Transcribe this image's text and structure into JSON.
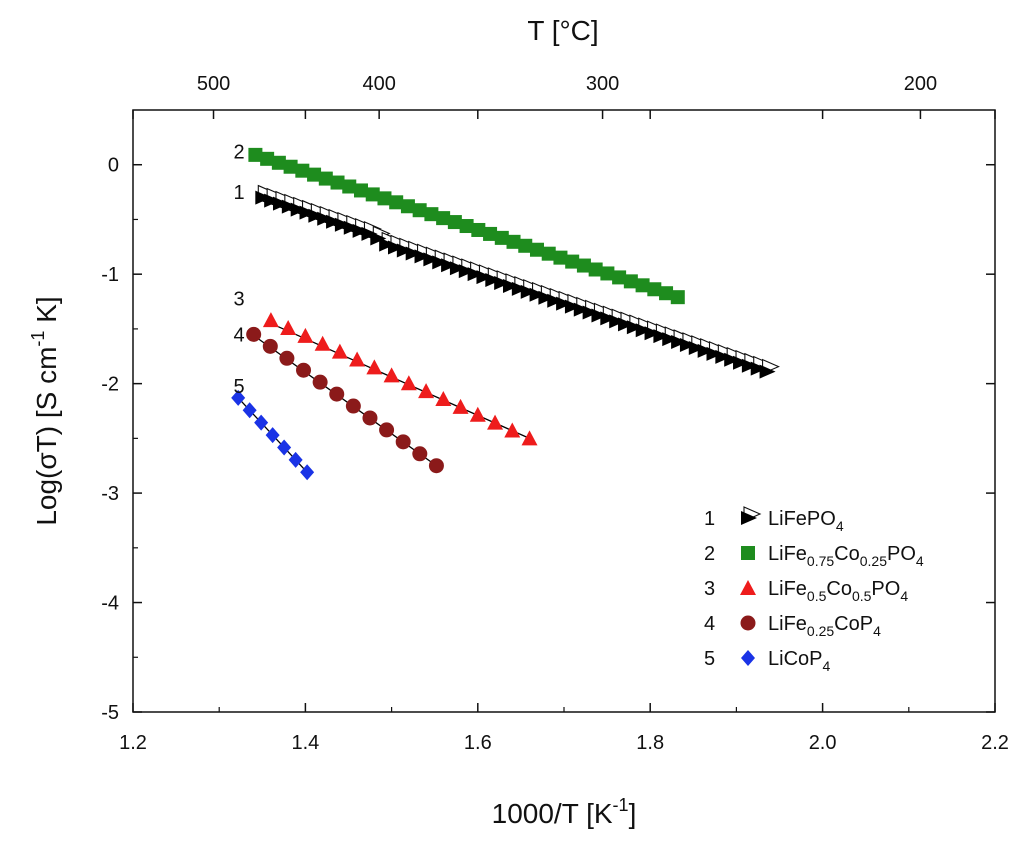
{
  "chart_data": {
    "type": "scatter",
    "xlabel": "1000/T [K",
    "xlabel_sup": "-1",
    "xlabel_end": "]",
    "ylabel": "Log(σT) [S cm",
    "ylabel_sup": "-1",
    "ylabel_end": " K]",
    "top_xlabel": "T [°C]",
    "xlim": [
      1.2,
      2.2
    ],
    "ylim": [
      -5,
      0.5
    ],
    "x_ticks": [
      1.2,
      1.4,
      1.6,
      1.8,
      2.0,
      2.2
    ],
    "x_tick_labels": [
      "1.2",
      "1.4",
      "1.6",
      "1.8",
      "2.0",
      "2.2"
    ],
    "y_ticks": [
      0,
      -1,
      -2,
      -3,
      -4,
      -5
    ],
    "y_tick_labels": [
      "0",
      "-1",
      "-2",
      "-3",
      "-4",
      "-5"
    ],
    "top_ticks_celsius": [
      500,
      400,
      300,
      200
    ],
    "top_tick_labels": [
      "500",
      "400",
      "300",
      "200"
    ],
    "legend_position": "bottom-right",
    "series": [
      {
        "id": "1",
        "name": "LiFePO4",
        "legend_parts": [
          {
            "t": "LiFePO"
          },
          {
            "t": "4",
            "sub": true
          }
        ],
        "marker": "triangle-right",
        "color": "#000000",
        "x_range": [
          1.35,
          1.935
        ],
        "n_points": 58,
        "fit": [
          [
            1.35,
            -0.33
          ],
          [
            1.935,
            -1.89
          ]
        ],
        "points": [
          [
            1.35,
            -0.3
          ],
          [
            1.48,
            -0.65
          ],
          [
            1.49,
            -0.72
          ],
          [
            1.935,
            -1.89
          ]
        ]
      },
      {
        "id": "2",
        "name": "LiFe0.75Co0.25PO4",
        "legend_parts": [
          {
            "t": "LiFe"
          },
          {
            "t": "0.75",
            "sub": true
          },
          {
            "t": "Co"
          },
          {
            "t": "0.25",
            "sub": true
          },
          {
            "t": "PO"
          },
          {
            "t": "4",
            "sub": true
          }
        ],
        "marker": "square",
        "color": "#1e8c1e",
        "x_range": [
          1.342,
          1.832
        ],
        "n_points": 37,
        "fit": [
          [
            1.342,
            0.1
          ],
          [
            1.832,
            -1.21
          ]
        ],
        "points": [
          [
            1.342,
            0.09
          ],
          [
            1.832,
            -1.21
          ]
        ]
      },
      {
        "id": "3",
        "name": "LiFe0.5Co0.5PO4",
        "legend_parts": [
          {
            "t": "LiFe"
          },
          {
            "t": "0.5",
            "sub": true
          },
          {
            "t": "Co"
          },
          {
            "t": "0.5",
            "sub": true
          },
          {
            "t": "PO"
          },
          {
            "t": "4",
            "sub": true
          }
        ],
        "marker": "triangle-up",
        "color": "#ee1c1c",
        "x_range": [
          1.36,
          1.66
        ],
        "n_points": 16,
        "fit": [
          [
            1.36,
            -1.45
          ],
          [
            1.66,
            -2.5
          ]
        ],
        "points": [
          [
            1.36,
            -1.42
          ],
          [
            1.66,
            -2.5
          ]
        ]
      },
      {
        "id": "4",
        "name": "LiFe0.25CoP4",
        "legend_parts": [
          {
            "t": "LiFe"
          },
          {
            "t": "0.25",
            "sub": true
          },
          {
            "t": "CoP"
          },
          {
            "t": "4",
            "sub": true
          }
        ],
        "marker": "circle",
        "color": "#8b1a1a",
        "x_range": [
          1.34,
          1.552
        ],
        "n_points": 12,
        "fit": [
          [
            1.34,
            -1.56
          ],
          [
            1.552,
            -2.75
          ]
        ],
        "points": [
          [
            1.34,
            -1.55
          ],
          [
            1.552,
            -2.75
          ]
        ]
      },
      {
        "id": "5",
        "name": "LiCoP4",
        "legend_parts": [
          {
            "t": "LiCoP"
          },
          {
            "t": "4",
            "sub": true
          }
        ],
        "marker": "diamond",
        "color": "#1a33e6",
        "x_range": [
          1.322,
          1.402
        ],
        "n_points": 7,
        "fit": [
          [
            1.322,
            -2.13
          ],
          [
            1.402,
            -2.81
          ]
        ],
        "points": [
          [
            1.322,
            -2.13
          ],
          [
            1.402,
            -2.81
          ]
        ]
      }
    ]
  }
}
